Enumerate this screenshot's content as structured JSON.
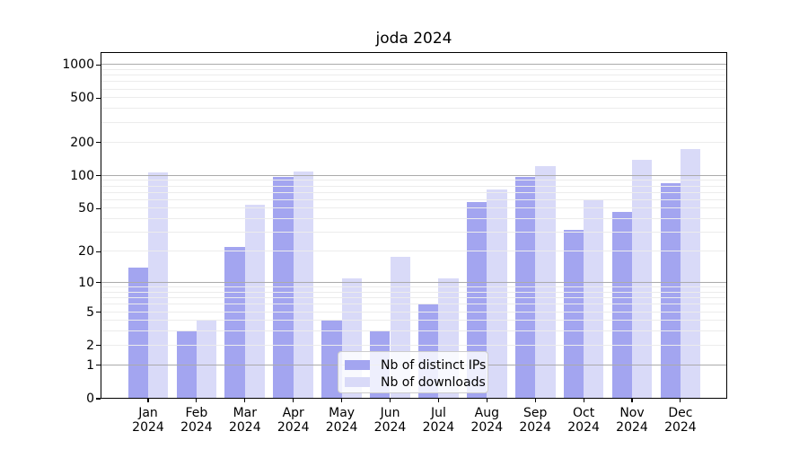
{
  "chart_data": {
    "type": "bar",
    "title": "joda 2024",
    "categories": [
      "Jan",
      "Feb",
      "Mar",
      "Apr",
      "May",
      "Jun",
      "Jul",
      "Aug",
      "Sep",
      "Oct",
      "Nov",
      "Dec"
    ],
    "category_year": "2024",
    "series": [
      {
        "name": "Nb of distinct IPs",
        "color": "#a3a5f0",
        "values": [
          14,
          3,
          22,
          97,
          4,
          3,
          6,
          57,
          97,
          32,
          47,
          85
        ]
      },
      {
        "name": "Nb of downloads",
        "color": "#d9daf8",
        "values": [
          107,
          4,
          54,
          110,
          11,
          18,
          11,
          75,
          122,
          60,
          138,
          175
        ]
      }
    ],
    "y_scale": "log10(1+value)",
    "y_ticks": [
      "0",
      "1",
      "2",
      "5",
      "10",
      "20",
      "50",
      "100",
      "200",
      "500",
      "1000"
    ],
    "y_major_gridlines": [
      1,
      10,
      100,
      1000
    ],
    "y_axis_max": 1300,
    "xlabel": "",
    "ylabel": "",
    "grid": true,
    "legend_position": "lower center",
    "colors": {
      "major_grid": "#ababab",
      "minor_grid": "#ececec",
      "axis": "#000000",
      "background": "#ffffff",
      "text": "#000000"
    }
  }
}
